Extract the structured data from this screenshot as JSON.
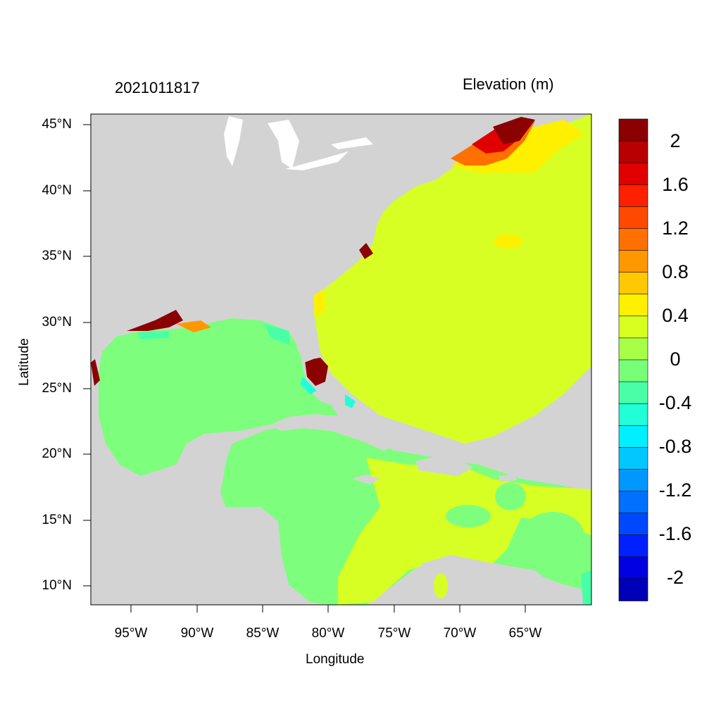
{
  "header": {
    "timestamp": "2021011817",
    "variable_title": "Elevation (m)"
  },
  "axes": {
    "x_title": "Longitude",
    "y_title": "Latitude",
    "lat_ticks": [
      "45°N",
      "40°N",
      "35°N",
      "30°N",
      "25°N",
      "20°N",
      "15°N",
      "10°N"
    ],
    "lon_ticks": [
      "95°W",
      "90°W",
      "85°W",
      "80°W",
      "75°W",
      "70°W",
      "65°W"
    ],
    "lat_values": [
      45,
      40,
      35,
      30,
      25,
      20,
      15,
      10
    ],
    "lon_values": [
      -95,
      -90,
      -85,
      -80,
      -75,
      -70,
      -65
    ],
    "lat_range": [
      8.5,
      46.2
    ],
    "lon_range": [
      -98,
      -60.5
    ]
  },
  "colorbar": {
    "labels": [
      "2",
      "1.6",
      "1.2",
      "0.8",
      "0.4",
      "0",
      "-0.4",
      "-0.8",
      "-1.2",
      "-1.6",
      "-2"
    ],
    "colors": [
      "#8b0000",
      "#b80000",
      "#e00000",
      "#ff2000",
      "#ff4800",
      "#ff7000",
      "#ff9800",
      "#ffc800",
      "#fff000",
      "#d8ff20",
      "#a8ff48",
      "#78ff78",
      "#48ffa8",
      "#20ffd8",
      "#00f0ff",
      "#00c8ff",
      "#0098ff",
      "#0070ff",
      "#0048ff",
      "#0020ff",
      "#0000e0",
      "#0000b8"
    ]
  },
  "colors": {
    "land": "#d3d3d3",
    "water_lakes": "#ffffff",
    "ocean_gulf": "#7dff7d",
    "atlantic": "#d8ff24",
    "high_surge": "#8b0000"
  }
}
